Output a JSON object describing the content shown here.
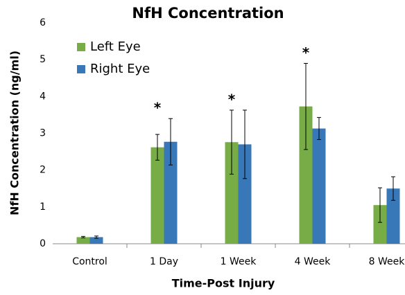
{
  "chart_data": {
    "type": "bar",
    "title": "NfH Concentration",
    "x_label": "Time-Post Injury",
    "y_label": "NfH Concentration (ng/ml)",
    "categories": [
      "Control",
      "1 Day",
      "1 Week",
      "4 Week",
      "8 Week"
    ],
    "series": [
      {
        "name": "Left Eye",
        "color": "#77ac46",
        "values": [
          0.18,
          2.62,
          2.76,
          3.73,
          1.05
        ],
        "errors": [
          0.02,
          0.35,
          0.87,
          1.17,
          0.47
        ]
      },
      {
        "name": "Right Eye",
        "color": "#3878b8",
        "values": [
          0.18,
          2.77,
          2.7,
          3.13,
          1.5
        ],
        "errors": [
          0.03,
          0.63,
          0.93,
          0.3,
          0.32
        ]
      }
    ],
    "significance": [
      null,
      "*",
      "*",
      "*",
      null
    ],
    "ylim": [
      0,
      6
    ],
    "yticks": [
      0,
      1,
      2,
      3,
      4,
      5,
      6
    ],
    "grid": false,
    "legend": "top-left"
  }
}
